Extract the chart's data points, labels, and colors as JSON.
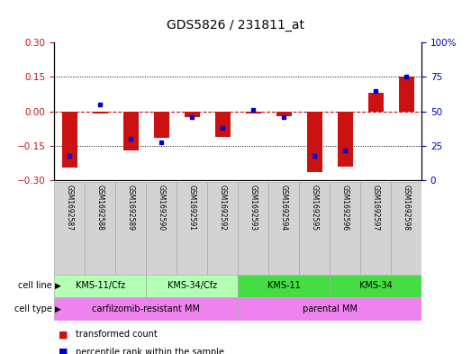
{
  "title": "GDS5826 / 231811_at",
  "samples": [
    "GSM1692587",
    "GSM1692588",
    "GSM1692589",
    "GSM1692590",
    "GSM1692591",
    "GSM1692592",
    "GSM1692593",
    "GSM1692594",
    "GSM1692595",
    "GSM1692596",
    "GSM1692597",
    "GSM1692598"
  ],
  "transformed_count": [
    -0.245,
    -0.01,
    -0.17,
    -0.115,
    -0.025,
    -0.11,
    -0.01,
    -0.02,
    -0.265,
    -0.24,
    0.08,
    0.15
  ],
  "percentile_rank": [
    18,
    55,
    30,
    28,
    46,
    38,
    51,
    46,
    18,
    22,
    65,
    75
  ],
  "ylim_left": [
    -0.3,
    0.3
  ],
  "ylim_right": [
    0,
    100
  ],
  "yticks_left": [
    -0.3,
    -0.15,
    0,
    0.15,
    0.3
  ],
  "yticks_right": [
    0,
    25,
    50,
    75,
    100
  ],
  "bar_color": "#cc1111",
  "dot_color": "#0000cc",
  "zero_line_color": "#cc1111",
  "bg_color": "#ffffff",
  "plot_bg": "#ffffff",
  "light_green": "#b3ffb3",
  "dark_green": "#44dd44",
  "pink": "#ee82ee",
  "sample_box_color": "#d3d3d3",
  "groups_cl": [
    {
      "label": "KMS-11/Cfz",
      "start": 0,
      "end": 2,
      "light": true
    },
    {
      "label": "KMS-34/Cfz",
      "start": 3,
      "end": 5,
      "light": true
    },
    {
      "label": "KMS-11",
      "start": 6,
      "end": 8,
      "light": false
    },
    {
      "label": "KMS-34",
      "start": 9,
      "end": 11,
      "light": false
    }
  ],
  "groups_ct": [
    {
      "label": "carfilzomib-resistant MM",
      "start": 0,
      "end": 5
    },
    {
      "label": "parental MM",
      "start": 6,
      "end": 11
    }
  ],
  "fig_width": 5.23,
  "fig_height": 3.93,
  "dpi": 100
}
